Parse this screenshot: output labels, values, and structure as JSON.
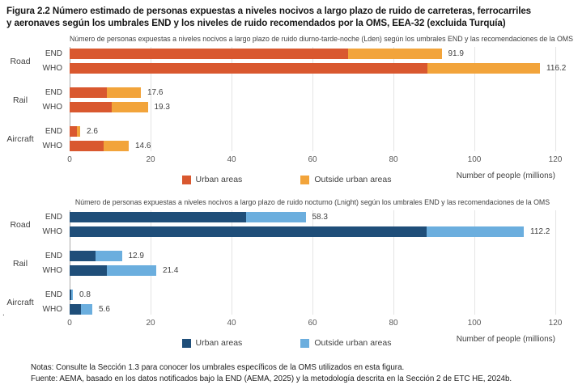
{
  "figure": {
    "title": "Figura 2.2 Número estimado de personas expuestas a niveles nocivos a largo plazo de ruido de carreteras, ferrocarriles y aeronaves según los umbrales END y los niveles de ruido recomendados por la OMS, EEA-32 (excluida Turquía)",
    "notes": "Notas: Consulte la Sección 1.3 para conocer los umbrales específicos de la OMS utilizados en esta figura.",
    "source": "Fuente: AEMA, basado en los datos notificados bajo la END (AEMA, 2025) y la metodología descrita en la Sección 2 de ETC HE, 2024b.",
    "stray_mark": "."
  },
  "chart_data": [
    {
      "type": "bar",
      "orientation": "horizontal",
      "stacked": true,
      "title": "Número de personas expuestas a niveles nocivos a largo plazo de ruido diurno-tarde-noche (Lden) según los umbrales END y las recomendaciones de la OMS",
      "xlabel": "Number of people (millions)",
      "xlim": [
        0,
        120
      ],
      "xticks": [
        0,
        20,
        40,
        60,
        80,
        100,
        120
      ],
      "grid": true,
      "legend_position": "bottom",
      "series_names": [
        "Urban areas",
        "Outside urban areas"
      ],
      "colors": {
        "urban": "#D9582F",
        "outside": "#F2A43B"
      },
      "groups": [
        {
          "category": "Road",
          "rows": [
            {
              "label": "END",
              "urban": 68.8,
              "outside": 23.1,
              "total": 91.9,
              "total_label": "91.9"
            },
            {
              "label": "WHO",
              "urban": 88.4,
              "outside": 27.8,
              "total": 116.2,
              "total_label": "116.2"
            }
          ]
        },
        {
          "category": "Rail",
          "rows": [
            {
              "label": "END",
              "urban": 9.2,
              "outside": 8.4,
              "total": 17.6,
              "total_label": "17.6"
            },
            {
              "label": "WHO",
              "urban": 10.4,
              "outside": 8.9,
              "total": 19.3,
              "total_label": "19.3"
            }
          ]
        },
        {
          "category": "Aircraft",
          "rows": [
            {
              "label": "END",
              "urban": 1.9,
              "outside": 0.7,
              "total": 2.6,
              "total_label": "2.6"
            },
            {
              "label": "WHO",
              "urban": 8.4,
              "outside": 6.2,
              "total": 14.6,
              "total_label": "14.6"
            }
          ]
        }
      ]
    },
    {
      "type": "bar",
      "orientation": "horizontal",
      "stacked": true,
      "title": "Número de personas expuestas a niveles nocivos a largo plazo de ruido nocturno (Lnight) según los umbrales END y las recomendaciones de la OMS",
      "xlabel": "Number of people (millions)",
      "xlim": [
        0,
        120
      ],
      "xticks": [
        0,
        20,
        40,
        60,
        80,
        100,
        120
      ],
      "grid": true,
      "legend_position": "bottom",
      "series_names": [
        "Urban areas",
        "Outside urban areas"
      ],
      "colors": {
        "urban": "#1F4E79",
        "outside": "#6BAEDE"
      },
      "groups": [
        {
          "category": "Road",
          "rows": [
            {
              "label": "END",
              "urban": 43.6,
              "outside": 14.7,
              "total": 58.3,
              "total_label": "58.3"
            },
            {
              "label": "WHO",
              "urban": 88.2,
              "outside": 24.0,
              "total": 112.2,
              "total_label": "112.2"
            }
          ]
        },
        {
          "category": "Rail",
          "rows": [
            {
              "label": "END",
              "urban": 6.4,
              "outside": 6.5,
              "total": 12.9,
              "total_label": "12.9"
            },
            {
              "label": "WHO",
              "urban": 9.2,
              "outside": 12.2,
              "total": 21.4,
              "total_label": "21.4"
            }
          ]
        },
        {
          "category": "Aircraft",
          "rows": [
            {
              "label": "END",
              "urban": 0.3,
              "outside": 0.5,
              "total": 0.8,
              "total_label": "0.8"
            },
            {
              "label": "WHO",
              "urban": 2.8,
              "outside": 2.8,
              "total": 5.6,
              "total_label": "5.6"
            }
          ]
        }
      ]
    }
  ]
}
